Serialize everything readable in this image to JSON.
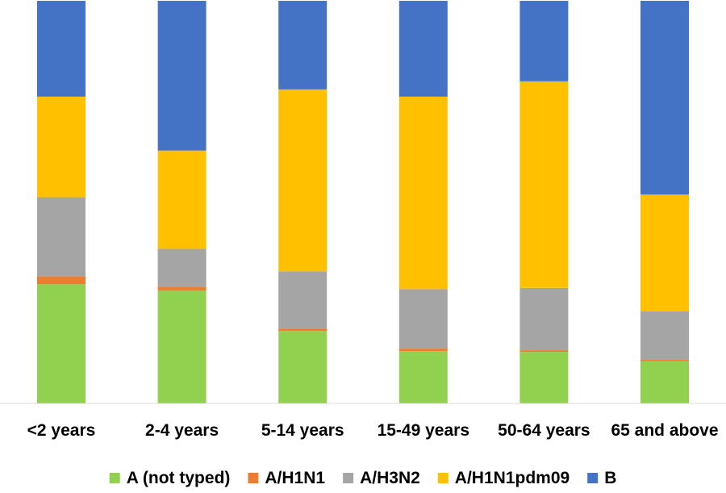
{
  "chart_data": {
    "type": "bar",
    "stacked": true,
    "normalized": true,
    "categories": [
      "<2 years",
      "2-4 years",
      "5-14 years",
      "15-49 years",
      "50-64 years",
      "65 and above"
    ],
    "series": [
      {
        "name": "A (not typed)",
        "color": "#92D050",
        "values": [
          29.6,
          28.0,
          18.0,
          13.0,
          12.8,
          10.5
        ]
      },
      {
        "name": "A/H1N1",
        "color": "#ED7D31",
        "values": [
          2.0,
          1.0,
          0.6,
          0.6,
          0.4,
          0.4
        ]
      },
      {
        "name": "A/H3N2",
        "color": "#A5A5A5",
        "values": [
          19.6,
          9.4,
          14.2,
          14.8,
          15.5,
          12.0
        ]
      },
      {
        "name": "A/H1N1pdm09",
        "color": "#FFC000",
        "values": [
          25.0,
          24.4,
          45.2,
          47.8,
          51.3,
          29.0
        ]
      },
      {
        "name": "B",
        "color": "#4472C4",
        "values": [
          23.8,
          37.2,
          22.0,
          23.8,
          20.0,
          48.1
        ]
      }
    ],
    "ylim": [
      0,
      100
    ],
    "grid": false,
    "legend": "bottom"
  }
}
